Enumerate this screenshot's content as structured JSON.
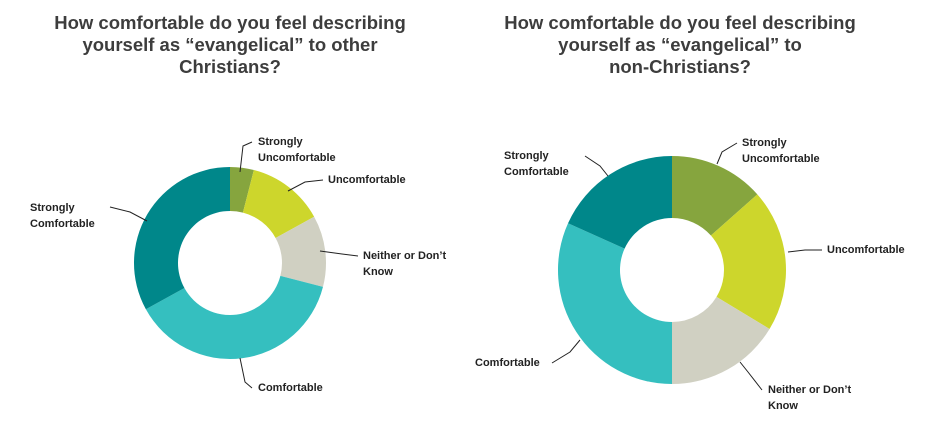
{
  "chart_data": [
    {
      "type": "pie",
      "title_lines": [
        "How comfortable do you feel describing",
        "yourself as “evangelical” to other",
        "Christians?"
      ],
      "categories": [
        "Strongly Uncomfortable",
        "Uncomfortable",
        "Neither or Don't Know",
        "Comfortable",
        "Strongly Comfortable"
      ],
      "values": [
        4,
        13,
        12,
        38,
        33
      ],
      "colors": [
        "#86a53e",
        "#cdd62c",
        "#d0d0c2",
        "#35bfbf",
        "#00878a"
      ],
      "labels": [
        {
          "lines": [
            "Strongly",
            "Uncomfortable"
          ]
        },
        {
          "lines": [
            "Uncomfortable"
          ]
        },
        {
          "lines": [
            "Neither or Don’t",
            "Know"
          ]
        },
        {
          "lines": [
            "Comfortable"
          ]
        },
        {
          "lines": [
            "Strongly",
            "Comfortable"
          ]
        }
      ]
    },
    {
      "type": "pie",
      "title_lines": [
        "How comfortable do you feel describing",
        "yourself as “evangelical” to",
        "non-Christians?"
      ],
      "categories": [
        "Strongly Uncomfortable",
        "Uncomfortable",
        "Neither or Don't Know",
        "Comfortable",
        "Strongly Comfortable"
      ],
      "values": [
        14,
        21,
        17,
        33,
        19
      ],
      "colors": [
        "#86a53e",
        "#cdd62c",
        "#d0d0c2",
        "#35bfbf",
        "#00878a"
      ],
      "labels": [
        {
          "lines": [
            "Strongly",
            "Uncomfortable"
          ]
        },
        {
          "lines": [
            "Uncomfortable"
          ]
        },
        {
          "lines": [
            "Neither or Don’t",
            "Know"
          ]
        },
        {
          "lines": [
            "Comfortable"
          ]
        },
        {
          "lines": [
            "Strongly",
            "Comfortable"
          ]
        }
      ]
    }
  ]
}
